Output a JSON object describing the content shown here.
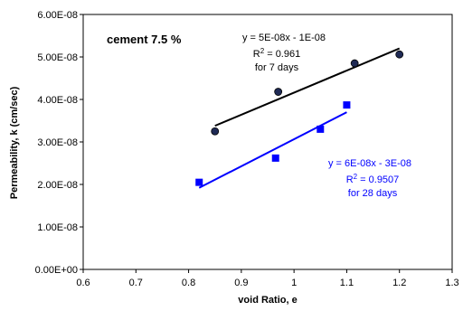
{
  "chart_data": {
    "type": "scatter",
    "title": "",
    "inset_label": "cement 7.5 %",
    "xlabel": "void Ratio, e",
    "ylabel": "Permeability, k (cm/sec)",
    "xlim": [
      0.6,
      1.3
    ],
    "ylim": [
      0,
      6e-08
    ],
    "x_ticks": [
      "0.6",
      "0.7",
      "0.8",
      "0.9",
      "1",
      "1.1",
      "1.2",
      "1.3"
    ],
    "y_ticks": [
      "0.00E+00",
      "1.00E-08",
      "2.00E-08",
      "3.00E-08",
      "4.00E-08",
      "5.00E-08",
      "6.00E-08"
    ],
    "grid": false,
    "series": [
      {
        "name": "",
        "color": "#000000",
        "marker_color": "#1f2a55",
        "marker": "circle",
        "points": [
          {
            "x": 0.85,
            "y": 3.25e-08
          },
          {
            "x": 0.97,
            "y": 4.18e-08
          },
          {
            "x": 1.115,
            "y": 4.85e-08
          },
          {
            "x": 1.2,
            "y": 5.06e-08
          }
        ],
        "trendline": {
          "x_start": 0.85,
          "x_end": 1.2,
          "y_start": 3.38e-08,
          "y_end": 5.2e-08
        },
        "annotation": {
          "equation_text": "y = 5E-08x - 1E-08",
          "r2_prefix": "R",
          "r2_sup": "2",
          "r2_value": " = 0.961",
          "days_text": "for 7 days"
        }
      },
      {
        "name": "",
        "color": "#0000ff",
        "marker_color": "#0000ff",
        "marker": "square",
        "points": [
          {
            "x": 0.82,
            "y": 2.05e-08
          },
          {
            "x": 0.965,
            "y": 2.62e-08
          },
          {
            "x": 1.05,
            "y": 3.3e-08
          },
          {
            "x": 1.1,
            "y": 3.87e-08
          }
        ],
        "trendline": {
          "x_start": 0.82,
          "x_end": 1.1,
          "y_start": 1.92e-08,
          "y_end": 3.7e-08
        },
        "annotation": {
          "equation_text": "y = 6E-08x - 3E-08",
          "r2_prefix": "R",
          "r2_sup": "2",
          "r2_value": " = 0.9507",
          "days_text": "for 28 days"
        }
      }
    ]
  }
}
